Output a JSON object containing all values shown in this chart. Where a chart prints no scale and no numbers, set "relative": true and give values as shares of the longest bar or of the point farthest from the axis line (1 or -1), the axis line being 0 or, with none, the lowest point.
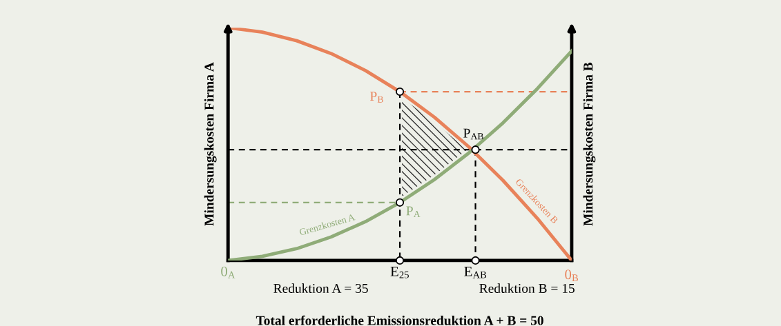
{
  "chart_data": {
    "type": "line",
    "relative": true,
    "xlabel": "Total erforderliche Emissionsreduktion A + B = 50",
    "ylabel": "Mindersungskosten Firma A",
    "y2label": "Mindersungskosten Firma B",
    "x": [
      0,
      5,
      10,
      15,
      20,
      25,
      30,
      35,
      40,
      45,
      50
    ],
    "xlim": [
      0,
      50
    ],
    "xticks": [
      {
        "value": 0,
        "label": "0$_{A}$"
      },
      {
        "value": 25,
        "label": "E$_{25}$"
      },
      {
        "value": 36,
        "label": "E$_{AB}$"
      }
    ],
    "series": [
      {
        "color": "#e8825a",
        "values": [
          1.0,
          0.981,
          0.944,
          0.889,
          0.816,
          0.725,
          0.616,
          0.489,
          0.344,
          0.181,
          0.0
        ]
      },
      {
        "color": "#8fac78",
        "values": [
          0.0,
          0.018,
          0.051,
          0.101,
          0.167,
          0.249,
          0.347,
          0.461,
          0.591,
          0.738,
          0.9
        ]
      },
      {
        "type": "line",
        "color": "#000000",
        "line_style": "dashed",
        "x": [
          0,
          50
        ],
        "values": [
          0.476,
          0.476
        ]
      },
      {
        "type": "line",
        "color": "#000000",
        "line_style": "dashed",
        "x": [
          25,
          25
        ],
        "values": [
          0.725,
          0.0
        ]
      },
      {
        "type": "line",
        "color": "#000000",
        "line_style": "dashed",
        "x": [
          36,
          36
        ],
        "values": [
          0.476,
          0.0
        ]
      },
      {
        "type": "line",
        "color": "#e8825a",
        "line_style": "dashed",
        "x": [
          25,
          50
        ],
        "values": [
          0.725,
          0.725
        ]
      },
      {
        "type": "line",
        "color": "#8fac78",
        "line_style": "dashed",
        "x": [
          0,
          25
        ],
        "values": [
          0.249,
          0.249
        ]
      },
      {
        "type": "scatter",
        "color": "#000000",
        "marker": "circle",
        "x": [
          25,
          25,
          36,
          25,
          36
        ],
        "values": [
          0.725,
          0.249,
          0.476,
          0.0,
          0.0
        ]
      }
    ],
    "annotations": [
      {
        "text": "P$_{B}$",
        "x": 25,
        "y": 0.725
      },
      {
        "text": "P$_{A}$",
        "x": 25,
        "y": 0.249
      },
      {
        "text": "P$_{AB}$",
        "x": 36,
        "y": 0.476
      },
      {
        "text": "Grenzkosten A",
        "x": 15,
        "y": 0.101
      },
      {
        "text": "Grenzkosten B",
        "x": 44,
        "y": 0.22
      },
      {
        "text": "0$_{B}$",
        "x": 50,
        "y": 0
      },
      "Reduktion A = 35",
      "Reduktion B = 15"
    ]
  }
}
